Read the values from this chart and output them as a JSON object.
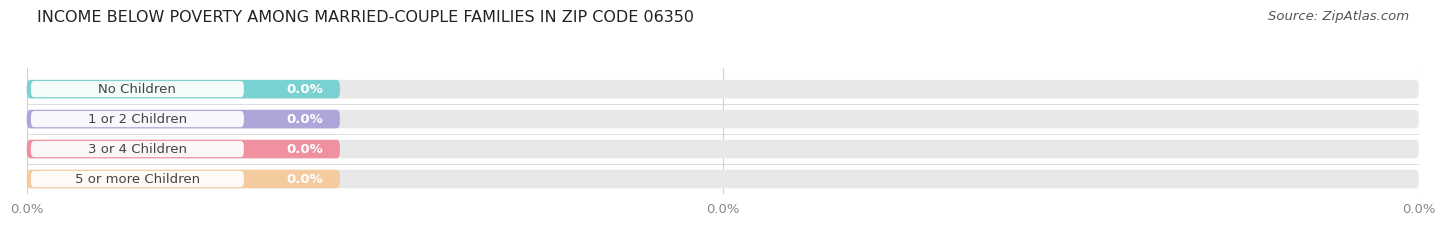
{
  "title": "INCOME BELOW POVERTY AMONG MARRIED-COUPLE FAMILIES IN ZIP CODE 06350",
  "source": "Source: ZipAtlas.com",
  "categories": [
    "No Children",
    "1 or 2 Children",
    "3 or 4 Children",
    "5 or more Children"
  ],
  "values": [
    0.0,
    0.0,
    0.0,
    0.0
  ],
  "bar_colors": [
    "#6ecfcf",
    "#a89fd8",
    "#f08898",
    "#f5c897"
  ],
  "bar_bg_color": "#e8e8e8",
  "background_color": "#ffffff",
  "xlim": [
    0,
    100
  ],
  "xtick_positions": [
    0,
    50,
    100
  ],
  "xtick_labels": [
    "0.0%",
    "0.0%",
    "0.0%"
  ],
  "title_fontsize": 11.5,
  "source_fontsize": 9.5,
  "label_fontsize": 9.5,
  "value_fontsize": 9.5,
  "grid_color": "#d0d0d0",
  "label_color": "#444444",
  "tick_color": "#888888"
}
